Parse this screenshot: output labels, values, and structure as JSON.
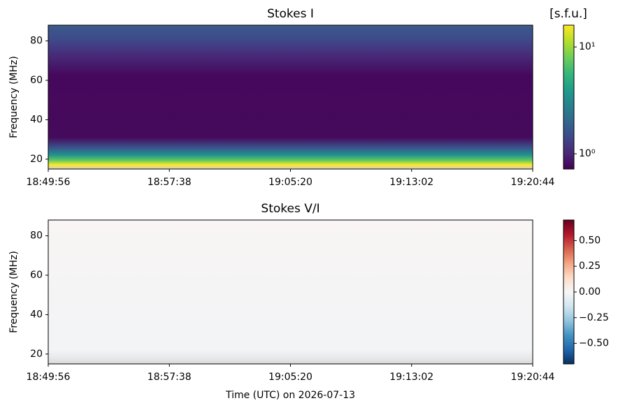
{
  "chart_data": [
    {
      "type": "heatmap",
      "title": "Stokes I",
      "ylabel": "Frequency (MHz)",
      "ylim": [
        15,
        88
      ],
      "yticks": [
        20,
        40,
        60,
        80
      ],
      "xticks": [
        "18:49:56",
        "18:57:38",
        "19:05:20",
        "19:13:02",
        "19:20:44"
      ],
      "colorbar": {
        "label": "[s.f.u.]",
        "colormap": "viridis",
        "scale": "log",
        "clim": [
          0.72,
          16
        ],
        "ticks": [
          {
            "value": 1,
            "label": "10⁰"
          },
          {
            "value": 10,
            "label": "10¹"
          }
        ]
      }
    },
    {
      "type": "heatmap",
      "title": "Stokes V/I",
      "ylabel": "Frequency (MHz)",
      "xlabel": "Time (UTC) on 2026-07-13",
      "ylim": [
        15,
        88
      ],
      "yticks": [
        20,
        40,
        60,
        80
      ],
      "xticks": [
        "18:49:56",
        "18:57:38",
        "19:05:20",
        "19:13:02",
        "19:20:44"
      ],
      "colorbar": {
        "colormap": "RdBu_r",
        "scale": "linear",
        "clim": [
          -0.7,
          0.7
        ],
        "ticks": [
          {
            "value": -0.5,
            "label": "−0.50"
          },
          {
            "value": -0.25,
            "label": "−0.25"
          },
          {
            "value": 0,
            "label": "0.00"
          },
          {
            "value": 0.25,
            "label": "0.25"
          },
          {
            "value": 0.5,
            "label": "0.50"
          }
        ]
      }
    }
  ]
}
